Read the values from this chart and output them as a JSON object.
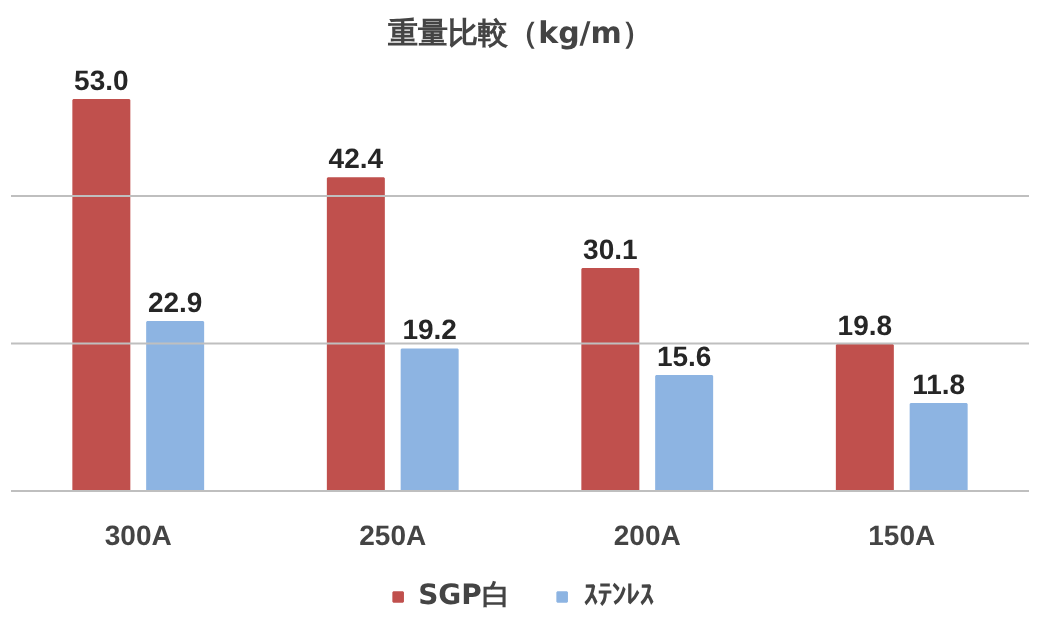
{
  "chart_data": {
    "type": "bar",
    "title": "重量比較（kg/m）",
    "categories": [
      "300A",
      "250A",
      "200A",
      "150A"
    ],
    "series": [
      {
        "name": "SGP白",
        "color": "#c0504d",
        "values": [
          53.0,
          42.4,
          30.1,
          19.8
        ],
        "value_labels": [
          "53.0",
          "42.4",
          "30.1",
          "19.8"
        ]
      },
      {
        "name": "ｽﾃﾝﾚｽ",
        "color": "#8db4e2",
        "values": [
          22.9,
          19.2,
          15.6,
          11.8
        ],
        "value_labels": [
          "22.9",
          "19.2",
          "15.6",
          "11.8"
        ]
      }
    ],
    "ref_lines": [
      {
        "axis": "y",
        "value": 20,
        "color": "#bfbfbf"
      },
      {
        "axis": "y",
        "value": 40,
        "color": "#bfbfbf"
      }
    ],
    "legend": "bottom",
    "tick_labels": "x"
  }
}
